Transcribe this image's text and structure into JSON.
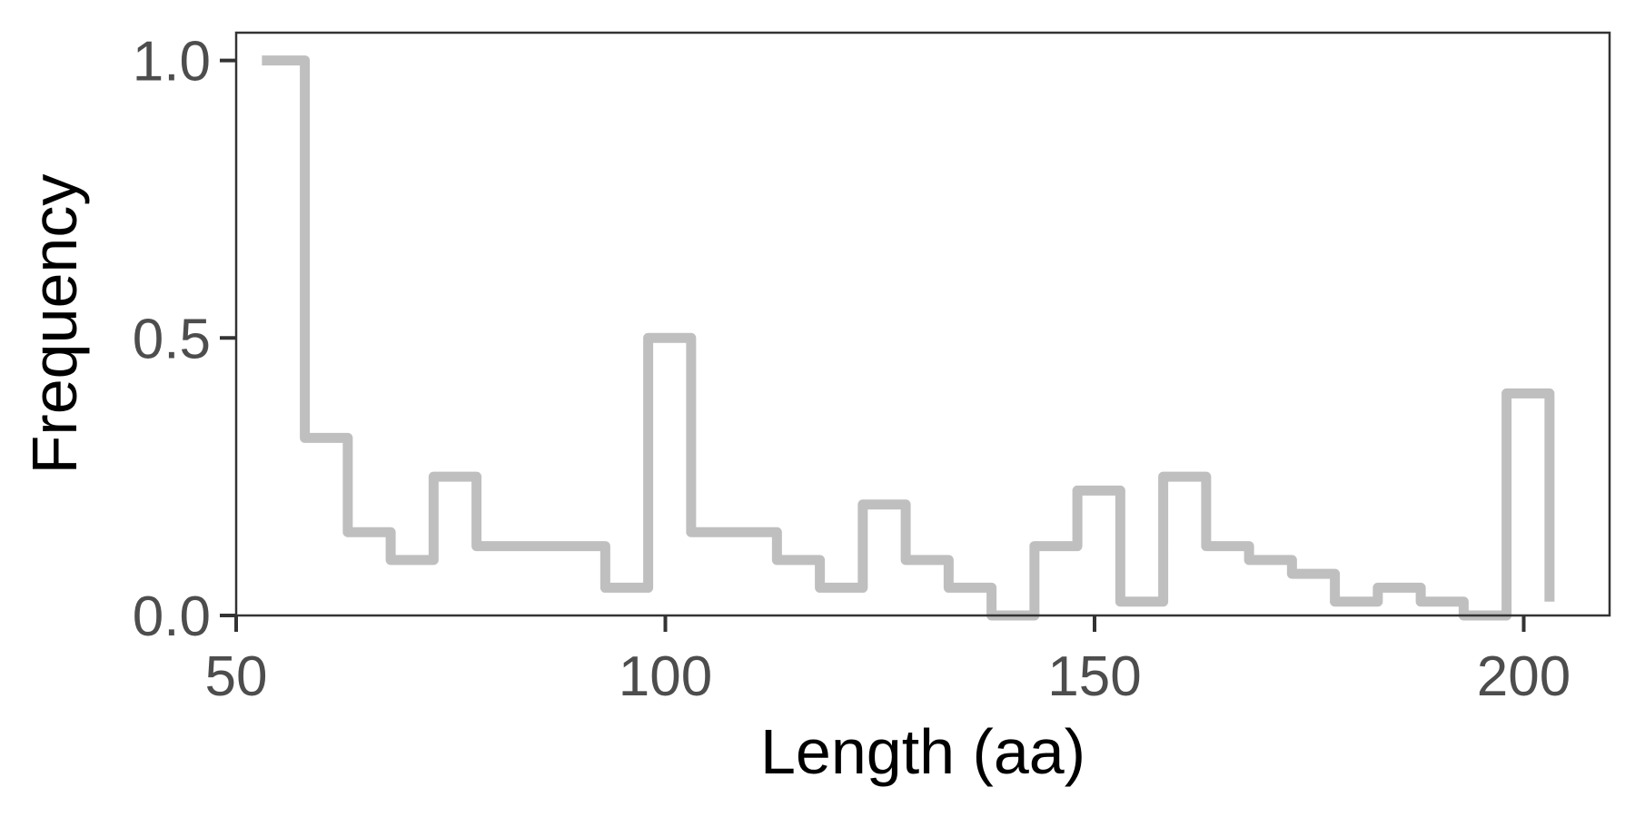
{
  "chart_data": {
    "type": "line",
    "subtype": "step-histogram",
    "xlabel": "Length (aa)",
    "ylabel": "Frequency",
    "xlim": [
      50,
      210
    ],
    "ylim": [
      0,
      1.05
    ],
    "x_ticks": [
      50,
      100,
      150,
      200
    ],
    "x_tick_labels": [
      "50",
      "100",
      "150",
      "200"
    ],
    "y_ticks": [
      0.0,
      0.5,
      1.0
    ],
    "y_tick_labels": [
      "0.0",
      "0.5",
      "1.0"
    ],
    "grid": false,
    "series": [
      {
        "line_color": "#bfbfbf",
        "bin_edges": [
          53,
          58,
          63,
          68,
          73,
          78,
          83,
          88,
          93,
          98,
          103,
          108,
          113,
          118,
          123,
          128,
          133,
          138,
          143,
          148,
          153,
          158,
          163,
          168,
          173,
          178,
          183,
          188,
          193,
          198,
          203
        ],
        "values": [
          1.0,
          0.32,
          0.15,
          0.1,
          0.25,
          0.125,
          0.125,
          0.125,
          0.05,
          0.5,
          0.15,
          0.15,
          0.1,
          0.05,
          0.2,
          0.1,
          0.05,
          0.0,
          0.125,
          0.225,
          0.025,
          0.25,
          0.125,
          0.1,
          0.075,
          0.025,
          0.05,
          0.025,
          0.0,
          0.4
        ],
        "end_value": 0.025
      }
    ]
  }
}
